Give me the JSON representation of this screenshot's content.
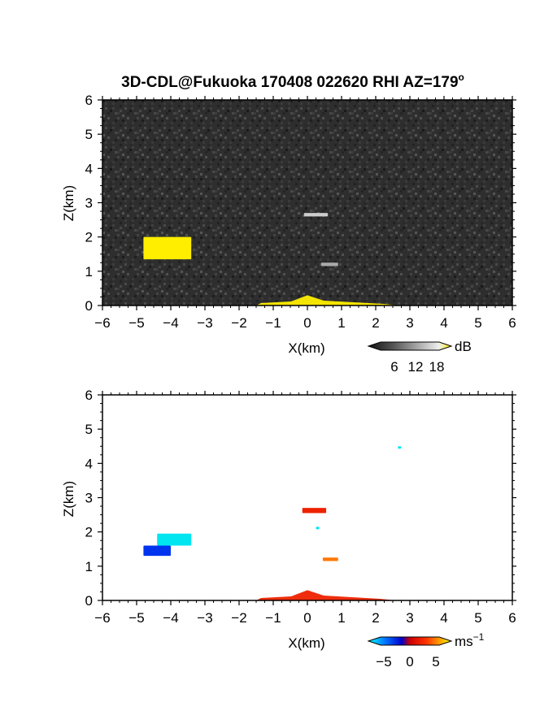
{
  "title_prefix": "3D-CDL@Fukuoka 170408 022620 RHI AZ=179",
  "title_degree": "o",
  "chart_data": [
    {
      "type": "heatmap",
      "name": "reflectivity",
      "xlabel": "X(km)",
      "ylabel": "Z(km)",
      "xlim": [
        -6,
        6
      ],
      "ylim": [
        0,
        6
      ],
      "xticks": [
        "-6",
        "-5",
        "-4",
        "-3",
        "-2",
        "-1",
        "0",
        "1",
        "2",
        "3",
        "4",
        "5",
        "6"
      ],
      "yticks": [
        "0",
        "1",
        "2",
        "3",
        "4",
        "5",
        "6"
      ],
      "background": "#2e2e2e",
      "colorbar": {
        "unit": "dB",
        "ticks": [
          "6",
          "12",
          "18"
        ],
        "range": [
          0,
          21
        ],
        "colors": [
          "#1a1a1a",
          "#555555",
          "#999999",
          "#dddddd",
          "#ffffff",
          "#ffff00"
        ]
      },
      "features": [
        {
          "label": "ground clutter",
          "x": [
            -1.5,
            2.7
          ],
          "z": [
            0,
            0.3
          ],
          "color": "#ffee00"
        },
        {
          "label": "echo left",
          "x": [
            -4.8,
            -3.4
          ],
          "z": [
            1.35,
            2.0
          ],
          "color": "#ffee00"
        },
        {
          "label": "echo center",
          "x": [
            -0.1,
            0.6
          ],
          "z": [
            2.6,
            2.7
          ],
          "color": "#cccccc"
        },
        {
          "label": "echo small",
          "x": [
            0.4,
            0.9
          ],
          "z": [
            1.15,
            1.25
          ],
          "color": "#aaaaaa"
        }
      ]
    },
    {
      "type": "heatmap",
      "name": "velocity",
      "xlabel": "X(km)",
      "ylabel": "Z(km)",
      "xlim": [
        -6,
        6
      ],
      "ylim": [
        0,
        6
      ],
      "xticks": [
        "-6",
        "-5",
        "-4",
        "-3",
        "-2",
        "-1",
        "0",
        "1",
        "2",
        "3",
        "4",
        "5",
        "6"
      ],
      "yticks": [
        "0",
        "1",
        "2",
        "3",
        "4",
        "5",
        "6"
      ],
      "background": "#ffffff",
      "colorbar": {
        "unit_base": "ms",
        "unit_exp": "−1",
        "ticks": [
          "−5",
          "0",
          "5"
        ],
        "range": [
          -7,
          7
        ],
        "colors": [
          "#00ffff",
          "#0066ff",
          "#0000cc",
          "#cc0000",
          "#ff3300",
          "#ff9900",
          "#ffff00"
        ]
      },
      "features": [
        {
          "label": "ground echo",
          "x": [
            -1.5,
            2.6
          ],
          "z": [
            0,
            0.3
          ],
          "color": "#ee2200"
        },
        {
          "label": "left blue",
          "x": [
            -4.8,
            -4.0
          ],
          "z": [
            1.3,
            1.6
          ],
          "color": "#0033ee"
        },
        {
          "label": "left cyan",
          "x": [
            -4.4,
            -3.4
          ],
          "z": [
            1.6,
            1.95
          ],
          "color": "#00e5f0"
        },
        {
          "label": "center red",
          "x": [
            -0.15,
            0.55
          ],
          "z": [
            2.55,
            2.7
          ],
          "color": "#ee2200"
        },
        {
          "label": "cyan dot",
          "x": [
            0.25,
            0.25
          ],
          "z": [
            2.15,
            2.15
          ],
          "color": "#00e5f0"
        },
        {
          "label": "orange",
          "x": [
            0.45,
            0.9
          ],
          "z": [
            1.15,
            1.25
          ],
          "color": "#ff7700"
        },
        {
          "label": "top cyan",
          "x": [
            2.65,
            2.65
          ],
          "z": [
            4.5,
            4.5
          ],
          "color": "#00e5f0"
        }
      ]
    }
  ]
}
